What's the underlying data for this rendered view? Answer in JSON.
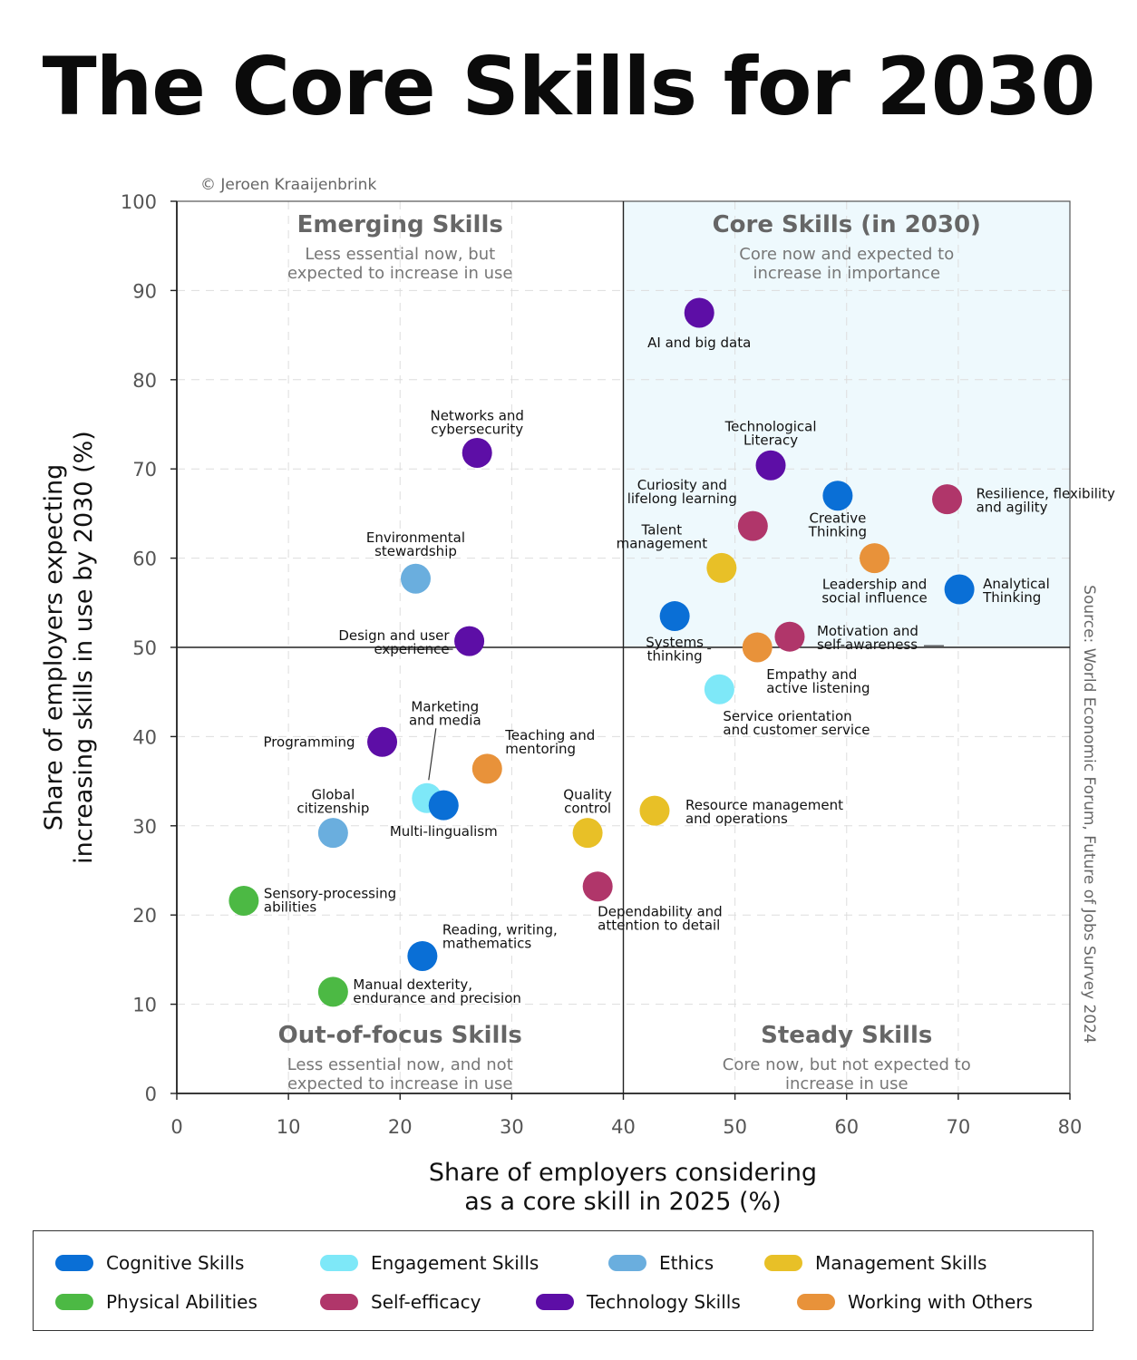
{
  "title": "The Core Skills for 2030",
  "credit": "© Jeroen Kraaijenbrink",
  "source": "Source: World Economic Forum, Future of Jobs Survey 2024",
  "colors": {
    "Cognitive Skills": "#0a6fd6",
    "Engagement Skills": "#7ee8f8",
    "Ethics": "#6aaede",
    "Management Skills": "#e8c027",
    "Physical Abilities": "#4cb944",
    "Self-efficacy": "#b0366a",
    "Technology Skills": "#5d0ea6",
    "Working with Others": "#e8923a",
    "quadrant_fill": "#eef9fd"
  },
  "quadrants": [
    {
      "title": "Emerging Skills",
      "subtitle": [
        "Less essential now, but",
        "expected to increase in use"
      ]
    },
    {
      "title": "Core Skills (in 2030)",
      "subtitle": [
        "Core now and expected to",
        "increase in importance"
      ]
    },
    {
      "title": "Out-of-focus Skills",
      "subtitle": [
        "Less essential now, and not",
        "expected to increase in use"
      ]
    },
    {
      "title": "Steady Skills",
      "subtitle": [
        "Core now, but not expected to",
        "increase in use"
      ]
    }
  ],
  "chart_data": {
    "type": "scatter",
    "xlabel": [
      "Share of employers considering",
      "as a core skill in 2025 (%)"
    ],
    "ylabel": [
      "Share of employers expecting",
      "increasing skills in use by 2030 (%)"
    ],
    "xlim": [
      0,
      80
    ],
    "ylim": [
      0,
      100
    ],
    "xticks": [
      0,
      10,
      20,
      30,
      40,
      50,
      60,
      70,
      80
    ],
    "yticks": [
      0,
      10,
      20,
      30,
      40,
      50,
      60,
      70,
      80,
      90,
      100
    ],
    "grid": true,
    "divider": {
      "x": 40,
      "y": 50
    },
    "legend_position": "bottom",
    "points": [
      {
        "label": [
          "AI and big data"
        ],
        "x": 46.8,
        "y": 87.5,
        "category": "Technology Skills"
      },
      {
        "label": [
          "Networks and",
          "cybersecurity"
        ],
        "x": 26.9,
        "y": 71.8,
        "category": "Technology Skills"
      },
      {
        "label": [
          "Technological",
          "Literacy"
        ],
        "x": 53.2,
        "y": 70.4,
        "category": "Technology Skills"
      },
      {
        "label": [
          "Curiosity and",
          "lifelong learning"
        ],
        "x": 51.6,
        "y": 63.6,
        "category": "Self-efficacy"
      },
      {
        "label": [
          "Creative",
          "Thinking"
        ],
        "x": 59.2,
        "y": 67.0,
        "category": "Cognitive Skills"
      },
      {
        "label": [
          "Resilience, flexibility",
          "and agility"
        ],
        "x": 69.0,
        "y": 66.6,
        "category": "Self-efficacy"
      },
      {
        "label": [
          "Environmental",
          "stewardship"
        ],
        "x": 21.4,
        "y": 57.7,
        "category": "Ethics"
      },
      {
        "label": [
          "Talent",
          "management"
        ],
        "x": 48.8,
        "y": 58.9,
        "category": "Management Skills"
      },
      {
        "label": [
          "Leadership and",
          "social influence"
        ],
        "x": 62.5,
        "y": 60.0,
        "category": "Working with Others"
      },
      {
        "label": [
          "Analytical",
          "Thinking"
        ],
        "x": 70.1,
        "y": 56.5,
        "category": "Cognitive Skills"
      },
      {
        "label": [
          "Design and user",
          "experience"
        ],
        "x": 26.2,
        "y": 50.7,
        "category": "Technology Skills"
      },
      {
        "label": [
          "Systems",
          "thinking"
        ],
        "x": 44.6,
        "y": 53.5,
        "category": "Cognitive Skills"
      },
      {
        "label": [
          "Motivation and",
          "self-awareness"
        ],
        "x": 54.9,
        "y": 51.2,
        "category": "Self-efficacy"
      },
      {
        "label": [
          "Empathy and",
          "active listening"
        ],
        "x": 52.0,
        "y": 50.0,
        "category": "Working with Others"
      },
      {
        "label": [
          "Service orientation",
          "and customer service"
        ],
        "x": 48.6,
        "y": 45.3,
        "category": "Engagement Skills"
      },
      {
        "label": [
          "Marketing",
          "and media"
        ],
        "x": 22.4,
        "y": 33.1,
        "category": "Engagement Skills"
      },
      {
        "label": [
          "Programming"
        ],
        "x": 18.4,
        "y": 39.4,
        "category": "Technology Skills"
      },
      {
        "label": [
          "Teaching and",
          "mentoring"
        ],
        "x": 27.8,
        "y": 36.4,
        "category": "Working with Others"
      },
      {
        "label": [
          "Multi-lingualism"
        ],
        "x": 23.9,
        "y": 32.3,
        "category": "Cognitive Skills"
      },
      {
        "label": [
          "Global",
          "citizenship"
        ],
        "x": 14.0,
        "y": 29.2,
        "category": "Ethics"
      },
      {
        "label": [
          "Quality",
          "control"
        ],
        "x": 36.8,
        "y": 29.2,
        "category": "Management Skills"
      },
      {
        "label": [
          "Resource management",
          "and operations"
        ],
        "x": 42.8,
        "y": 31.7,
        "category": "Management Skills"
      },
      {
        "label": [
          "Dependability and",
          "attention to detail"
        ],
        "x": 37.7,
        "y": 23.2,
        "category": "Self-efficacy"
      },
      {
        "label": [
          "Sensory-processing",
          "abilities"
        ],
        "x": 6.0,
        "y": 21.6,
        "category": "Physical Abilities"
      },
      {
        "label": [
          "Reading, writing,",
          "mathematics"
        ],
        "x": 22.0,
        "y": 15.4,
        "category": "Cognitive Skills"
      },
      {
        "label": [
          "Manual dexterity,",
          "endurance and precision"
        ],
        "x": 14.0,
        "y": 11.4,
        "category": "Physical Abilities"
      }
    ]
  },
  "legend": [
    {
      "label": "Cognitive Skills",
      "category": "Cognitive Skills"
    },
    {
      "label": "Engagement Skills",
      "category": "Engagement Skills"
    },
    {
      "label": "Ethics",
      "category": "Ethics"
    },
    {
      "label": "Management Skills",
      "category": "Management Skills"
    },
    {
      "label": "Physical Abilities",
      "category": "Physical Abilities"
    },
    {
      "label": "Self-efficacy",
      "category": "Self-efficacy"
    },
    {
      "label": "Technology Skills",
      "category": "Technology Skills"
    },
    {
      "label": "Working with Others",
      "category": "Working with Others"
    }
  ]
}
